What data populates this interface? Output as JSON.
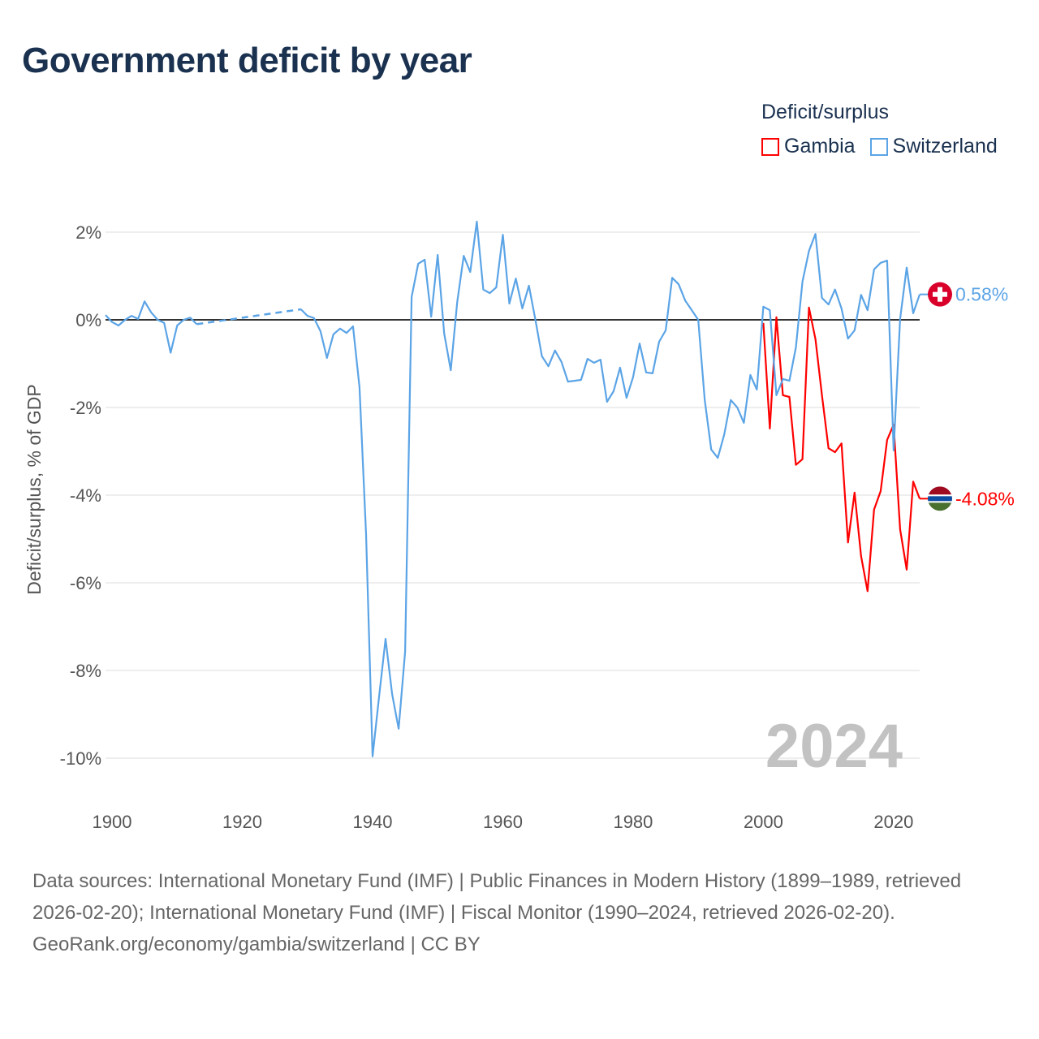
{
  "title": "Government deficit by year",
  "legend": {
    "title": "Deficit/surplus"
  },
  "watermark_year": "2024",
  "footer": {
    "sources": "Data sources: International Monetary Fund (IMF) | Public Finances in Modern History (1899–1989, retrieved 2026-02-20); International Monetary Fund (IMF) | Fiscal Monitor (1990–2024, retrieved 2026-02-20).",
    "credit": "GeoRank.org/economy/gambia/switzerland | CC BY"
  },
  "chart_data": {
    "type": "line",
    "title": "Government deficit by year",
    "ylabel": "Deficit/surplus, % of GDP",
    "xlabel": "",
    "xlim": [
      1899,
      2024
    ],
    "ylim": [
      -10,
      2
    ],
    "grid": true,
    "legend_position": "top-right",
    "x_ticks": [
      1900,
      1920,
      1940,
      1960,
      1980,
      2000,
      2020
    ],
    "y_ticks": [
      2,
      0,
      -2,
      -4,
      -6,
      -8,
      -10
    ],
    "y_tick_labels": [
      "2%",
      "0%",
      "-2%",
      "-4%",
      "-6%",
      "-8%",
      "-10%"
    ],
    "x_tick_labels": [
      "1900",
      "1920",
      "1940",
      "1960",
      "1980",
      "2000",
      "2020"
    ],
    "series": [
      {
        "name": "Gambia",
        "color": "#ff0000",
        "end_label": "-4.08%",
        "x": [
          2000,
          2001,
          2002,
          2003,
          2004,
          2005,
          2006,
          2007,
          2008,
          2009,
          2010,
          2011,
          2012,
          2013,
          2014,
          2015,
          2016,
          2017,
          2018,
          2019,
          2020,
          2021,
          2022,
          2023,
          2024
        ],
        "y": [
          -0.07,
          -2.48,
          0.06,
          -1.72,
          -1.76,
          -3.31,
          -3.18,
          0.28,
          -0.44,
          -1.72,
          -2.93,
          -3.02,
          -2.82,
          -5.08,
          -3.94,
          -5.39,
          -6.19,
          -4.33,
          -3.91,
          -2.74,
          -2.39,
          -4.78,
          -5.7,
          -3.69,
          -4.08
        ]
      },
      {
        "name": "Switzerland",
        "color": "#5ba4e6",
        "end_label": "0.58%",
        "x": [
          1899,
          1900,
          1901,
          1902,
          1903,
          1904,
          1905,
          1906,
          1907,
          1908,
          1909,
          1910,
          1911,
          1912,
          1913,
          1929,
          1930,
          1931,
          1932,
          1933,
          1934,
          1935,
          1936,
          1937,
          1938,
          1939,
          1940,
          1941,
          1942,
          1943,
          1944,
          1945,
          1946,
          1947,
          1948,
          1949,
          1950,
          1951,
          1952,
          1953,
          1954,
          1955,
          1956,
          1957,
          1958,
          1959,
          1960,
          1961,
          1962,
          1963,
          1964,
          1965,
          1966,
          1967,
          1968,
          1969,
          1970,
          1971,
          1972,
          1973,
          1974,
          1975,
          1976,
          1977,
          1978,
          1979,
          1980,
          1981,
          1982,
          1983,
          1984,
          1985,
          1986,
          1987,
          1988,
          1989,
          1990,
          1991,
          1992,
          1993,
          1994,
          1995,
          1996,
          1997,
          1998,
          1999,
          2000,
          2001,
          2002,
          2003,
          2004,
          2005,
          2006,
          2007,
          2008,
          2009,
          2010,
          2011,
          2012,
          2013,
          2014,
          2015,
          2016,
          2017,
          2018,
          2019,
          2020,
          2021,
          2022,
          2023,
          2024
        ],
        "y": [
          0.11,
          -0.05,
          -0.13,
          0,
          0.09,
          0.02,
          0.42,
          0.17,
          0,
          -0.07,
          -0.75,
          -0.13,
          0,
          0.05,
          -0.1,
          0.24,
          0.09,
          0.04,
          -0.26,
          -0.87,
          -0.33,
          -0.2,
          -0.3,
          -0.15,
          -1.54,
          -4.9,
          -9.96,
          -8.6,
          -7.28,
          -8.54,
          -9.33,
          -7.57,
          0.52,
          1.28,
          1.37,
          0.07,
          1.48,
          -0.31,
          -1.15,
          0.41,
          1.46,
          1.09,
          2.24,
          0.69,
          0.61,
          0.74,
          1.94,
          0.37,
          0.94,
          0.26,
          0.78,
          0,
          -0.83,
          -1.06,
          -0.7,
          -0.96,
          -1.41,
          -1.39,
          -1.37,
          -0.89,
          -0.98,
          -0.91,
          -1.87,
          -1.63,
          -1.09,
          -1.78,
          -1.31,
          -0.54,
          -1.2,
          -1.22,
          -0.5,
          -0.24,
          0.96,
          0.81,
          0.44,
          0.22,
          0,
          -1.83,
          -2.96,
          -3.15,
          -2.61,
          -1.83,
          -2.0,
          -2.35,
          -1.26,
          -1.59,
          0.3,
          0.22,
          -1.72,
          -1.35,
          -1.39,
          -0.63,
          0.87,
          1.57,
          1.96,
          0.5,
          0.35,
          0.69,
          0.26,
          -0.43,
          -0.24,
          0.57,
          0.22,
          1.15,
          1.3,
          1.35,
          -2.98,
          0.02,
          1.19,
          0.15,
          0.58
        ]
      }
    ]
  }
}
